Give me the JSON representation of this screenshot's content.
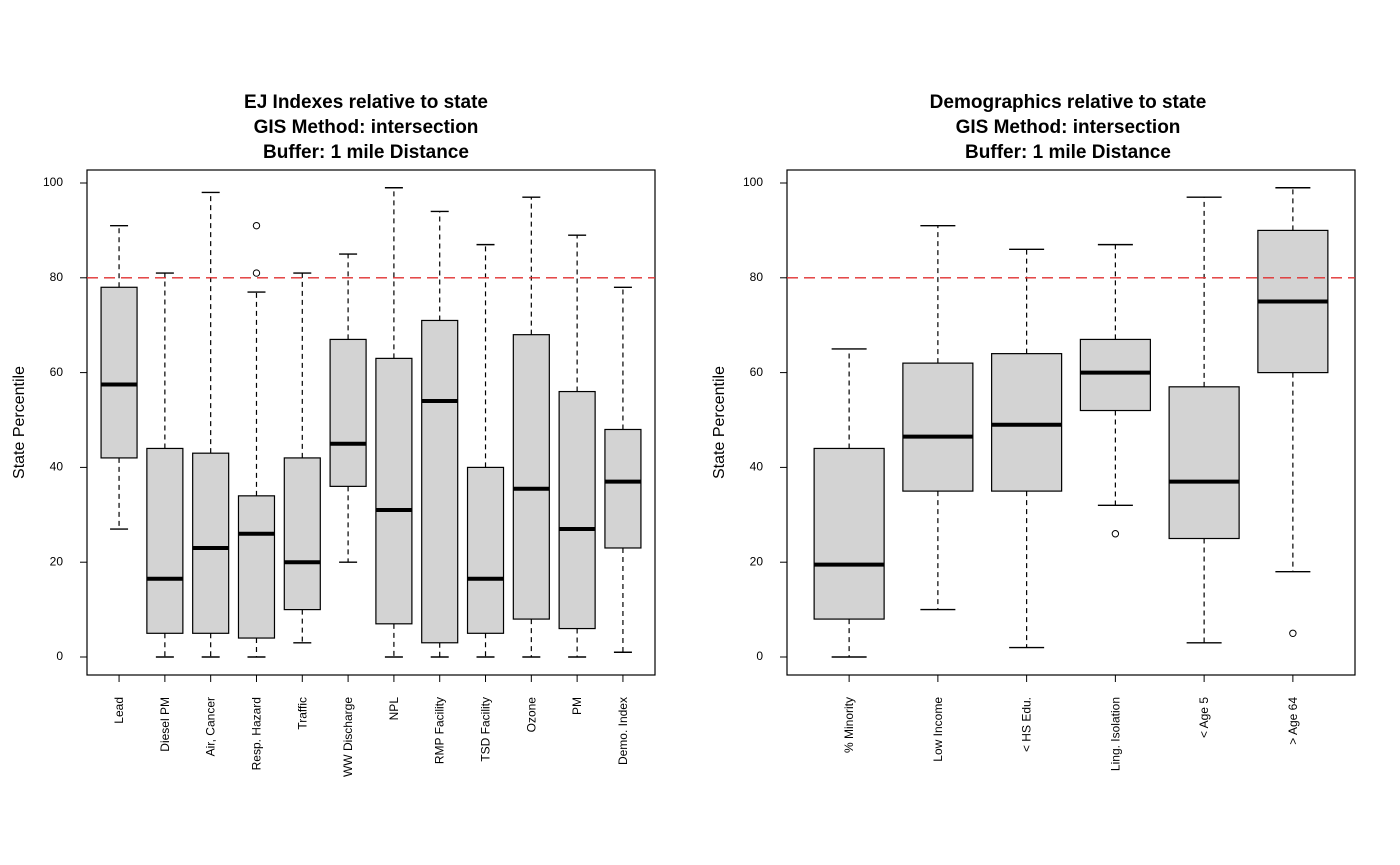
{
  "chart_data": [
    {
      "type": "boxplot",
      "title": [
        "EJ Indexes relative to state",
        "GIS Method: intersection",
        "Buffer: 1 mile Distance"
      ],
      "xlabel": "",
      "ylabel": "State Percentile",
      "ylim": [
        0,
        100
      ],
      "yticks": [
        0,
        20,
        40,
        60,
        80,
        100
      ],
      "reference_line": {
        "y": 80,
        "color": "#e03030",
        "style": "dashed"
      },
      "box_fill": "#d3d3d3",
      "categories": [
        "Lead",
        "Diesel PM",
        "Air, Cancer",
        "Resp. Hazard",
        "Traffic",
        "WW Discharge",
        "NPL",
        "RMP Facility",
        "TSD Facility",
        "Ozone",
        "PM",
        "Demo. Index"
      ],
      "boxes": [
        {
          "min": 27,
          "q1": 42,
          "median": 57.5,
          "q3": 78,
          "max": 91,
          "outliers": []
        },
        {
          "min": 0,
          "q1": 5,
          "median": 16.5,
          "q3": 44,
          "max": 81,
          "outliers": []
        },
        {
          "min": 0,
          "q1": 5,
          "median": 23,
          "q3": 43,
          "max": 98,
          "outliers": []
        },
        {
          "min": 0,
          "q1": 4,
          "median": 26,
          "q3": 34,
          "max": 77,
          "outliers": [
            81,
            91
          ]
        },
        {
          "min": 3,
          "q1": 10,
          "median": 20,
          "q3": 42,
          "max": 81,
          "outliers": []
        },
        {
          "min": 20,
          "q1": 36,
          "median": 45,
          "q3": 67,
          "max": 85,
          "outliers": []
        },
        {
          "min": 0,
          "q1": 7,
          "median": 31,
          "q3": 63,
          "max": 99,
          "outliers": []
        },
        {
          "min": 0,
          "q1": 3,
          "median": 54,
          "q3": 71,
          "max": 94,
          "outliers": []
        },
        {
          "min": 0,
          "q1": 5,
          "median": 16.5,
          "q3": 40,
          "max": 87,
          "outliers": []
        },
        {
          "min": 0,
          "q1": 8,
          "median": 35.5,
          "q3": 68,
          "max": 97,
          "outliers": []
        },
        {
          "min": 0,
          "q1": 6,
          "median": 27,
          "q3": 56,
          "max": 89,
          "outliers": []
        },
        {
          "min": 1,
          "q1": 23,
          "median": 37,
          "q3": 48,
          "max": 78,
          "outliers": []
        }
      ]
    },
    {
      "type": "boxplot",
      "title": [
        "Demographics relative to state",
        "GIS Method: intersection",
        "Buffer: 1 mile Distance"
      ],
      "xlabel": "",
      "ylabel": "State Percentile",
      "ylim": [
        0,
        100
      ],
      "yticks": [
        0,
        20,
        40,
        60,
        80,
        100
      ],
      "reference_line": {
        "y": 80,
        "color": "#e03030",
        "style": "dashed"
      },
      "box_fill": "#d3d3d3",
      "categories": [
        "% Minority",
        "Low Income",
        "< HS Edu.",
        "Ling. Isolation",
        "< Age 5",
        "> Age 64"
      ],
      "boxes": [
        {
          "min": 0,
          "q1": 8,
          "median": 19.5,
          "q3": 44,
          "max": 65,
          "outliers": []
        },
        {
          "min": 10,
          "q1": 35,
          "median": 46.5,
          "q3": 62,
          "max": 91,
          "outliers": []
        },
        {
          "min": 2,
          "q1": 35,
          "median": 49,
          "q3": 64,
          "max": 86,
          "outliers": []
        },
        {
          "min": 32,
          "q1": 52,
          "median": 60,
          "q3": 67,
          "max": 87,
          "outliers": [
            26
          ]
        },
        {
          "min": 3,
          "q1": 25,
          "median": 37,
          "q3": 57,
          "max": 97,
          "outliers": []
        },
        {
          "min": 18,
          "q1": 60,
          "median": 75,
          "q3": 90,
          "max": 99,
          "outliers": [
            5
          ]
        }
      ]
    }
  ]
}
